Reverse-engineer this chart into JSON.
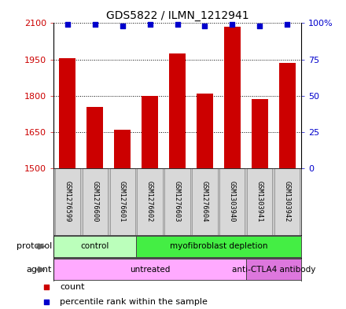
{
  "title": "GDS5822 / ILMN_1212941",
  "samples": [
    "GSM1276599",
    "GSM1276600",
    "GSM1276601",
    "GSM1276602",
    "GSM1276603",
    "GSM1276604",
    "GSM1303940",
    "GSM1303941",
    "GSM1303942"
  ],
  "counts": [
    1955,
    1755,
    1660,
    1800,
    1975,
    1810,
    2085,
    1785,
    1935
  ],
  "percentiles": [
    99,
    99,
    98,
    99,
    99,
    98,
    99,
    98,
    99
  ],
  "ylim_left": [
    1500,
    2100
  ],
  "ylim_right": [
    0,
    100
  ],
  "yticks_left": [
    1500,
    1650,
    1800,
    1950,
    2100
  ],
  "yticks_right": [
    0,
    25,
    50,
    75,
    100
  ],
  "bar_color": "#cc0000",
  "dot_color": "#0000cc",
  "protocol_groups": [
    {
      "label": "control",
      "start": 0,
      "end": 3,
      "color": "#bbffbb"
    },
    {
      "label": "myofibroblast depletion",
      "start": 3,
      "end": 9,
      "color": "#44ee44"
    }
  ],
  "agent_groups": [
    {
      "label": "untreated",
      "start": 0,
      "end": 7,
      "color": "#ffaaff"
    },
    {
      "label": "anti-CTLA4 antibody",
      "start": 7,
      "end": 9,
      "color": "#dd77dd"
    }
  ],
  "protocol_label": "protocol",
  "agent_label": "agent",
  "legend_count_label": "count",
  "legend_pct_label": "percentile rank within the sample",
  "sample_box_color": "#d8d8d8",
  "sample_bg_color": "#c8c8c8"
}
